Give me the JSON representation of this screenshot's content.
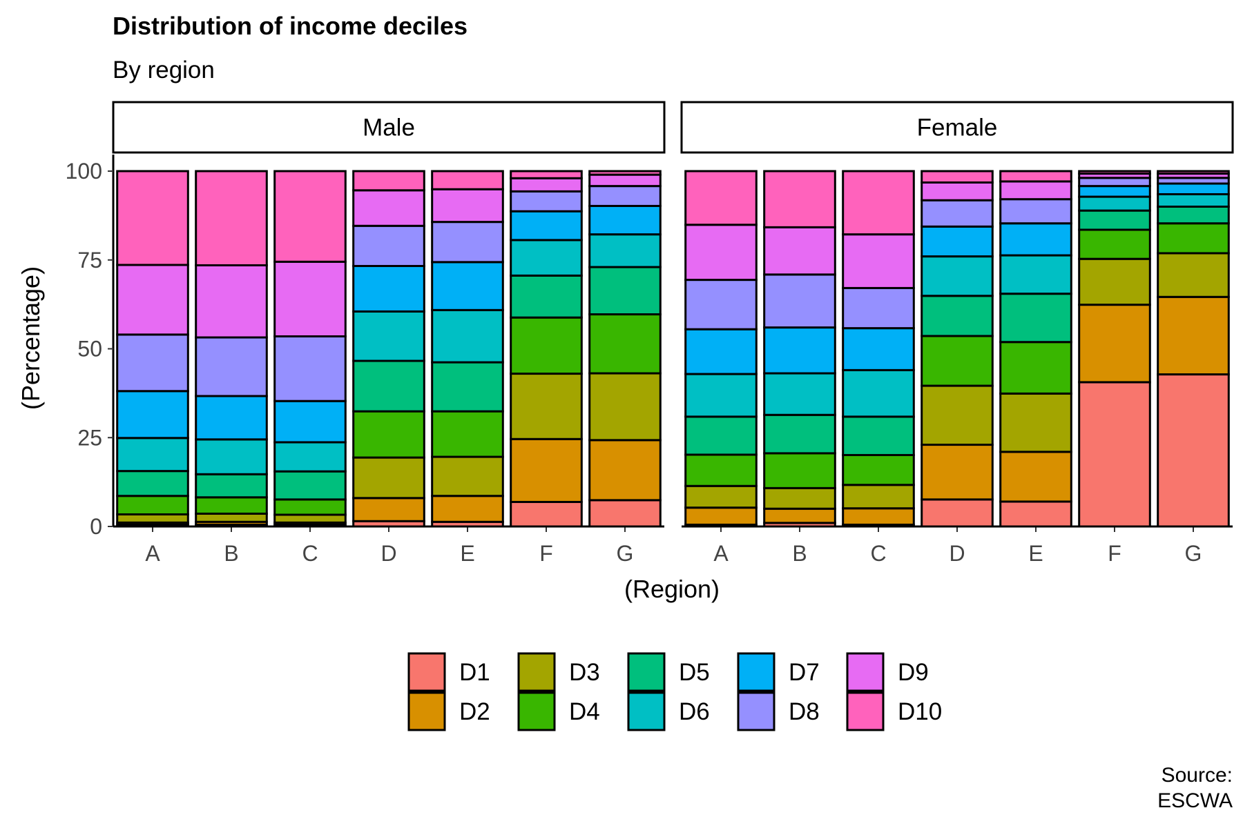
{
  "chart_data": {
    "type": "bar",
    "stacked": true,
    "title": "Distribution of income deciles",
    "subtitle": "By region",
    "xlabel": "(Region)",
    "ylabel": "(Percentage)",
    "ylim": [
      0,
      100
    ],
    "yticks": [
      0,
      25,
      50,
      75,
      100
    ],
    "caption_lines": [
      "Source:",
      "ESCWA"
    ],
    "legend_position": "bottom",
    "categories": [
      "A",
      "B",
      "C",
      "D",
      "E",
      "F",
      "G"
    ],
    "deciles": [
      {
        "name": "D1",
        "color": "#F8766D"
      },
      {
        "name": "D2",
        "color": "#D89000"
      },
      {
        "name": "D3",
        "color": "#A3A500"
      },
      {
        "name": "D4",
        "color": "#39B600"
      },
      {
        "name": "D5",
        "color": "#00BF7D"
      },
      {
        "name": "D6",
        "color": "#00BFC4"
      },
      {
        "name": "D7",
        "color": "#00B0F6"
      },
      {
        "name": "D8",
        "color": "#9590FF"
      },
      {
        "name": "D9",
        "color": "#E76BF3"
      },
      {
        "name": "D10",
        "color": "#FF62BC"
      }
    ],
    "panels": [
      {
        "label": "Male",
        "values": {
          "A": [
            0.5,
            0.6,
            2.3,
            5.2,
            7.0,
            9.3,
            13.2,
            15.9,
            19.6,
            26.4
          ],
          "B": [
            0.5,
            0.8,
            2.3,
            4.6,
            6.5,
            9.8,
            12.2,
            16.5,
            20.3,
            26.5
          ],
          "C": [
            0.5,
            0.6,
            2.2,
            4.3,
            7.9,
            8.2,
            11.6,
            18.2,
            21.0,
            25.5
          ],
          "D": [
            1.5,
            6.5,
            11.4,
            13.0,
            14.2,
            13.9,
            12.8,
            11.3,
            10.0,
            5.4
          ],
          "E": [
            1.3,
            7.3,
            11.0,
            12.8,
            13.8,
            14.7,
            13.5,
            11.3,
            9.2,
            5.1
          ],
          "F": [
            6.9,
            17.7,
            18.4,
            15.8,
            11.8,
            10.0,
            8.1,
            5.6,
            3.7,
            2.0
          ],
          "G": [
            7.4,
            16.9,
            18.8,
            16.6,
            13.3,
            9.2,
            8.0,
            5.6,
            3.2,
            1.0
          ]
        }
      },
      {
        "label": "Female",
        "values": {
          "A": [
            0.5,
            4.8,
            6.1,
            8.8,
            10.7,
            12.0,
            12.6,
            13.9,
            15.5,
            15.1
          ],
          "B": [
            1.0,
            4.0,
            5.8,
            9.8,
            10.8,
            11.7,
            12.9,
            14.9,
            13.3,
            15.8
          ],
          "C": [
            0.5,
            4.6,
            6.6,
            8.4,
            10.8,
            13.1,
            11.8,
            11.3,
            15.1,
            17.8
          ],
          "D": [
            7.6,
            15.4,
            16.6,
            14.0,
            11.3,
            11.1,
            8.4,
            7.4,
            5.0,
            3.2
          ],
          "E": [
            7.0,
            14.0,
            16.4,
            14.5,
            13.6,
            10.8,
            9.0,
            6.8,
            5.0,
            2.9
          ],
          "F": [
            40.6,
            21.8,
            12.9,
            8.2,
            5.4,
            3.9,
            3.0,
            2.3,
            1.2,
            0.7
          ],
          "G": [
            42.8,
            21.8,
            12.3,
            8.4,
            4.7,
            3.5,
            3.0,
            1.6,
            1.2,
            0.7
          ]
        }
      }
    ]
  }
}
